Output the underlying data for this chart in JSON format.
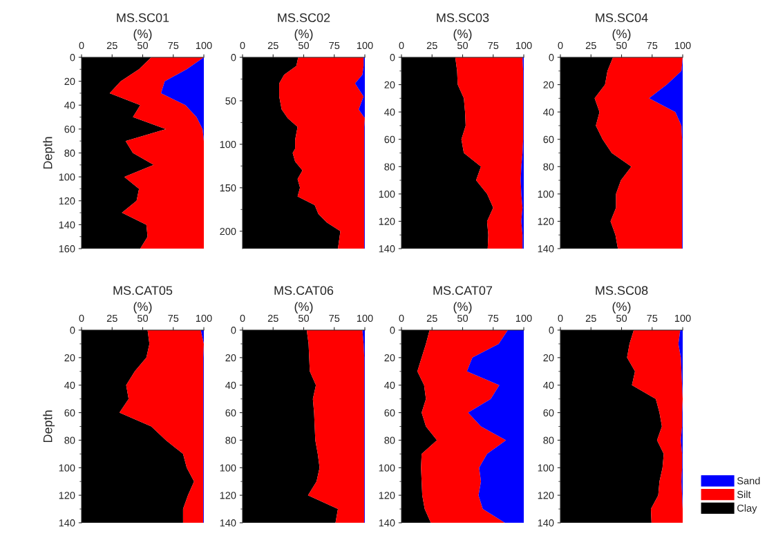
{
  "chart_data": [
    {
      "type": "area",
      "orientation": "horizontal",
      "stacked": true,
      "title": "MS.SC01",
      "subtitle": "(%)",
      "ylabel": "Depth",
      "xlim": [
        0,
        100
      ],
      "xticks": [
        0,
        25,
        50,
        75,
        100
      ],
      "ylim": [
        160,
        0
      ],
      "yticks": [
        0,
        20,
        40,
        60,
        80,
        100,
        120,
        140,
        160
      ],
      "x": [
        0,
        10,
        20,
        30,
        40,
        50,
        60,
        70,
        80,
        90,
        100,
        110,
        120,
        130,
        140,
        150,
        160
      ],
      "series": [
        {
          "color": "#000000",
          "values": [
            57,
            47,
            32,
            23,
            48,
            42,
            69,
            36,
            42,
            59,
            35,
            47,
            45,
            33,
            53,
            54,
            48
          ]
        },
        {
          "color": "#ff0000",
          "values": [
            43,
            39,
            36,
            42,
            37,
            52,
            30,
            64,
            58,
            41,
            65,
            53,
            55,
            67,
            47,
            46,
            52
          ]
        },
        {
          "color": "#0000ff",
          "values": [
            0,
            14,
            32,
            35,
            15,
            6,
            1,
            0,
            0,
            0,
            0,
            0,
            0,
            0,
            0,
            0,
            0
          ]
        }
      ]
    },
    {
      "type": "area",
      "orientation": "horizontal",
      "stacked": true,
      "title": "MS.SC02",
      "subtitle": "(%)",
      "xlim": [
        0,
        100
      ],
      "xticks": [
        0,
        25,
        50,
        75,
        100
      ],
      "ylim": [
        220,
        0
      ],
      "yticks": [
        0,
        50,
        100,
        150,
        200
      ],
      "x": [
        0,
        10,
        20,
        30,
        45,
        60,
        70,
        80,
        95,
        105,
        110,
        120,
        130,
        140,
        150,
        160,
        170,
        180,
        190,
        200,
        220
      ],
      "series": [
        {
          "color": "#000000",
          "values": [
            45.5,
            44,
            34,
            30,
            30,
            32,
            37,
            45,
            43,
            43,
            41,
            43,
            49,
            45,
            47,
            45,
            59,
            62,
            69,
            80,
            78
          ]
        },
        {
          "color": "#ff0000",
          "values": [
            53.5,
            55,
            64,
            62,
            69,
            63,
            63,
            54.5,
            56.5,
            56.5,
            58.5,
            56.5,
            50.5,
            54.5,
            52.5,
            54.5,
            40.5,
            37.5,
            30.5,
            19.5,
            21.5
          ]
        },
        {
          "color": "#0000ff",
          "values": [
            1,
            1,
            2,
            8,
            1,
            5,
            0,
            0.5,
            0.5,
            0.5,
            0.5,
            0.5,
            0.5,
            0.5,
            0.5,
            0.5,
            0.5,
            0.5,
            0.5,
            0.5,
            0.5
          ]
        }
      ]
    },
    {
      "type": "area",
      "orientation": "horizontal",
      "stacked": true,
      "title": "MS.SC03",
      "subtitle": "(%)",
      "xlim": [
        0,
        100
      ],
      "xticks": [
        0,
        25,
        50,
        75,
        100
      ],
      "ylim": [
        140,
        0
      ],
      "yticks": [
        0,
        20,
        40,
        60,
        80,
        100,
        120,
        140
      ],
      "x": [
        0,
        10,
        20,
        30,
        40,
        50,
        60,
        70,
        80,
        90,
        100,
        110,
        120,
        130,
        140
      ],
      "series": [
        {
          "color": "#000000",
          "values": [
            44,
            45.5,
            46,
            51,
            52,
            52.5,
            49,
            51,
            65,
            61,
            70,
            75,
            70,
            71,
            70.5
          ]
        },
        {
          "color": "#ff0000",
          "values": [
            55,
            54,
            53.5,
            48.5,
            47.5,
            47,
            50.5,
            48,
            33,
            36.5,
            28,
            24,
            28,
            28,
            28.5
          ]
        },
        {
          "color": "#0000ff",
          "values": [
            1,
            0.5,
            0.5,
            0.5,
            0.5,
            0.5,
            0.5,
            1,
            2,
            2.5,
            2,
            1,
            2,
            1,
            1
          ]
        }
      ]
    },
    {
      "type": "area",
      "orientation": "horizontal",
      "stacked": true,
      "title": "MS.SC04",
      "subtitle": "(%)",
      "xlim": [
        0,
        100
      ],
      "xticks": [
        0,
        25,
        50,
        75,
        100
      ],
      "ylim": [
        140,
        0
      ],
      "yticks": [
        0,
        20,
        40,
        60,
        80,
        100,
        120,
        140
      ],
      "x": [
        0,
        10,
        20,
        30,
        40,
        50,
        60,
        70,
        80,
        90,
        100,
        110,
        120,
        130,
        140
      ],
      "series": [
        {
          "color": "#000000",
          "values": [
            43,
            38.5,
            36.5,
            28,
            32,
            29,
            34.5,
            42,
            58,
            49.5,
            45.5,
            45.5,
            41,
            45,
            47
          ]
        },
        {
          "color": "#ff0000",
          "values": [
            57,
            60.5,
            50.5,
            44.5,
            62,
            70,
            65,
            57.5,
            41.5,
            50,
            54,
            54,
            58.5,
            54.5,
            52.5
          ]
        },
        {
          "color": "#0000ff",
          "values": [
            0,
            1,
            13,
            27.5,
            6,
            1,
            0.5,
            0.5,
            0.5,
            0.5,
            0.5,
            0.5,
            0.5,
            0.5,
            0.5
          ]
        }
      ]
    },
    {
      "type": "area",
      "orientation": "horizontal",
      "stacked": true,
      "title": "MS.CAT05",
      "subtitle": "(%)",
      "ylabel": "Depth",
      "xlim": [
        0,
        100
      ],
      "xticks": [
        0,
        25,
        50,
        75,
        100
      ],
      "ylim": [
        140,
        0
      ],
      "yticks": [
        0,
        20,
        40,
        60,
        80,
        100,
        120,
        140
      ],
      "x": [
        0,
        10,
        20,
        30,
        40,
        50,
        60,
        70,
        80,
        90,
        100,
        110,
        120,
        130,
        140
      ],
      "series": [
        {
          "color": "#000000",
          "values": [
            54,
            55.5,
            53,
            43.5,
            36.5,
            38.5,
            31,
            57,
            69,
            83,
            86,
            92,
            87,
            83,
            83
          ]
        },
        {
          "color": "#ff0000",
          "values": [
            43.5,
            44.5,
            46.5,
            56,
            63,
            61,
            68.5,
            42.5,
            30.5,
            16.5,
            13.5,
            7.5,
            12.5,
            16.5,
            16.5
          ]
        },
        {
          "color": "#0000ff",
          "values": [
            2.5,
            0,
            0.5,
            0.5,
            0.5,
            0.5,
            0.5,
            0.5,
            0.5,
            0.5,
            0.5,
            0.5,
            0.5,
            0.5,
            0.5
          ]
        }
      ]
    },
    {
      "type": "area",
      "orientation": "horizontal",
      "stacked": true,
      "title": "MS.CAT06",
      "subtitle": "(%)",
      "xlim": [
        0,
        100
      ],
      "xticks": [
        0,
        25,
        50,
        75,
        100
      ],
      "ylim": [
        140,
        0
      ],
      "yticks": [
        0,
        20,
        40,
        60,
        80,
        100,
        120,
        140
      ],
      "x": [
        0,
        10,
        20,
        30,
        40,
        50,
        60,
        70,
        80,
        90,
        100,
        110,
        120,
        130,
        140
      ],
      "series": [
        {
          "color": "#000000",
          "values": [
            52.5,
            54,
            54.5,
            55,
            60,
            57.5,
            58.5,
            59,
            59.5,
            61.5,
            63,
            60.5,
            53.5,
            78,
            76
          ]
        },
        {
          "color": "#ff0000",
          "values": [
            45.5,
            45,
            45,
            44.5,
            39.5,
            42,
            41,
            40.5,
            40,
            38,
            36.5,
            39,
            46,
            21.5,
            23.5
          ]
        },
        {
          "color": "#0000ff",
          "values": [
            2,
            1,
            0.5,
            0.5,
            0.5,
            0.5,
            0.5,
            0.5,
            0.5,
            0.5,
            0.5,
            0.5,
            0.5,
            0.5,
            0.5
          ]
        }
      ]
    },
    {
      "type": "area",
      "orientation": "horizontal",
      "stacked": true,
      "title": "MS.CAT07",
      "subtitle": "(%)",
      "xlim": [
        0,
        100
      ],
      "xticks": [
        0,
        25,
        50,
        75,
        100
      ],
      "ylim": [
        140,
        0
      ],
      "yticks": [
        0,
        20,
        40,
        60,
        80,
        100,
        120,
        140
      ],
      "x": [
        0,
        10,
        20,
        30,
        40,
        50,
        60,
        70,
        80,
        90,
        100,
        110,
        120,
        130,
        140
      ],
      "series": [
        {
          "color": "#000000",
          "values": [
            23,
            20,
            16.5,
            13,
            18.5,
            20,
            16.5,
            20,
            29,
            16.5,
            16,
            16.5,
            17,
            19,
            24
          ]
        },
        {
          "color": "#ff0000",
          "values": [
            64,
            59.5,
            41.5,
            40.5,
            61.5,
            53,
            38,
            45,
            56.5,
            53.5,
            47.5,
            48.5,
            46,
            47.5,
            60.5
          ]
        },
        {
          "color": "#0000ff",
          "values": [
            13,
            20.5,
            42,
            46.5,
            20,
            27,
            45.5,
            35,
            14.5,
            30,
            36.5,
            35,
            37,
            33.5,
            15.5
          ]
        }
      ]
    },
    {
      "type": "area",
      "orientation": "horizontal",
      "stacked": true,
      "title": "MS.SC08",
      "subtitle": "(%)",
      "xlim": [
        0,
        100
      ],
      "xticks": [
        0,
        25,
        50,
        75,
        100
      ],
      "ylim": [
        140,
        0
      ],
      "yticks": [
        0,
        20,
        40,
        60,
        80,
        100,
        120,
        140
      ],
      "legend": "right",
      "x": [
        0,
        10,
        20,
        30,
        40,
        50,
        60,
        70,
        80,
        90,
        100,
        110,
        120,
        130,
        140
      ],
      "series": [
        {
          "name": "Clay",
          "color": "#000000",
          "values": [
            60,
            56.5,
            54.5,
            61,
            58.5,
            78,
            81,
            83,
            79,
            84.5,
            83.5,
            81,
            80,
            74,
            74.5
          ]
        },
        {
          "name": "Silt",
          "color": "#ff0000",
          "values": [
            38,
            40,
            44,
            38,
            41,
            22,
            18.5,
            16.5,
            19.5,
            15,
            16,
            18,
            19.5,
            26,
            25.5
          ]
        },
        {
          "name": "Sand",
          "color": "#0000ff",
          "values": [
            2,
            3.5,
            1.5,
            1,
            0.5,
            0,
            0.5,
            0.5,
            1.5,
            0.5,
            0.5,
            1,
            0.5,
            0,
            0
          ]
        }
      ]
    }
  ]
}
